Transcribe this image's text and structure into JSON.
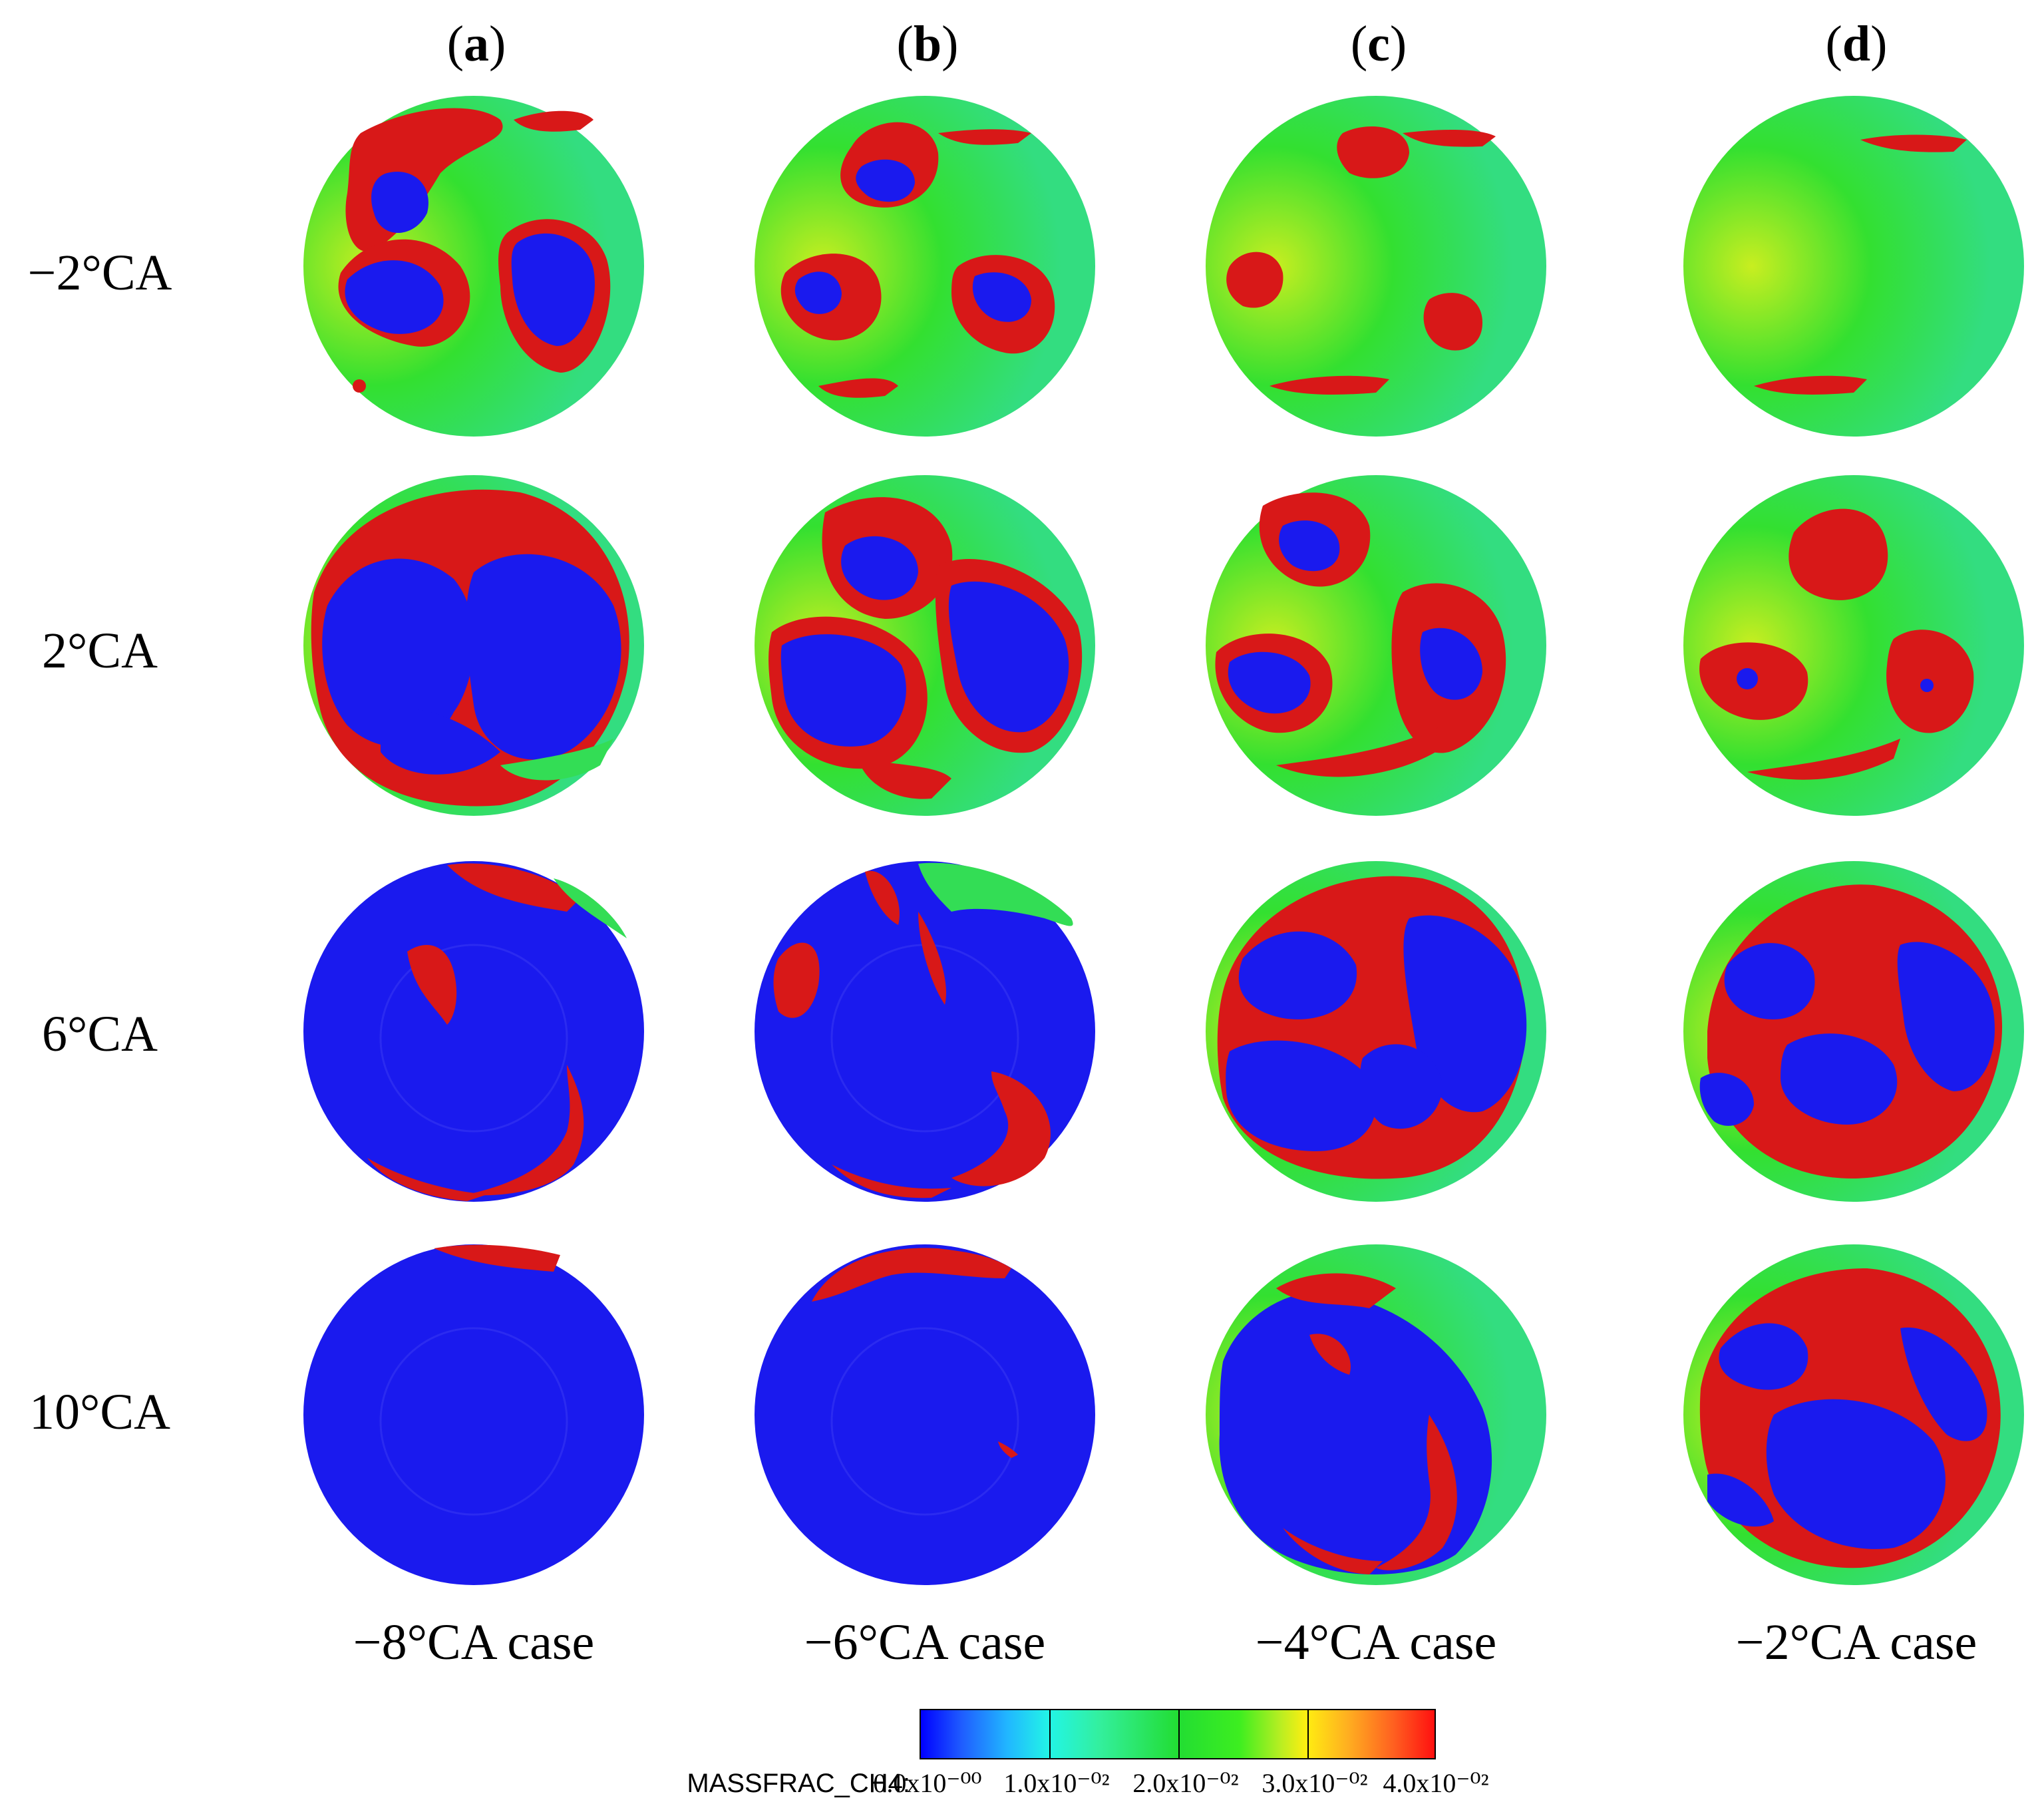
{
  "columns": [
    {
      "label_open": "(",
      "label_letter": "a",
      "label_close": ")",
      "case": "−8°CA case"
    },
    {
      "label_open": "(",
      "label_letter": "b",
      "label_close": ")",
      "case": "−6°CA case"
    },
    {
      "label_open": "(",
      "label_letter": "c",
      "label_close": ")",
      "case": "−4°CA case"
    },
    {
      "label_open": "(",
      "label_letter": "d",
      "label_close": ")",
      "case": "−2°CA case"
    }
  ],
  "rows": [
    {
      "label": "−2°CA"
    },
    {
      "label": "2°CA"
    },
    {
      "label": "6°CA"
    },
    {
      "label": "10°CA"
    }
  ],
  "colorbar": {
    "variable": "MASSFRAC_CH4:",
    "ticks": [
      "0.0x10⁻⁰⁰",
      "1.0x10⁻⁰²",
      "2.0x10⁻⁰²",
      "3.0x10⁻⁰²",
      "4.0x10⁻⁰²"
    ],
    "min": 0.0,
    "max": 0.04,
    "colors": {
      "low": "#0000ff",
      "mid": "#22dd33",
      "high": "#ff1010"
    }
  }
}
